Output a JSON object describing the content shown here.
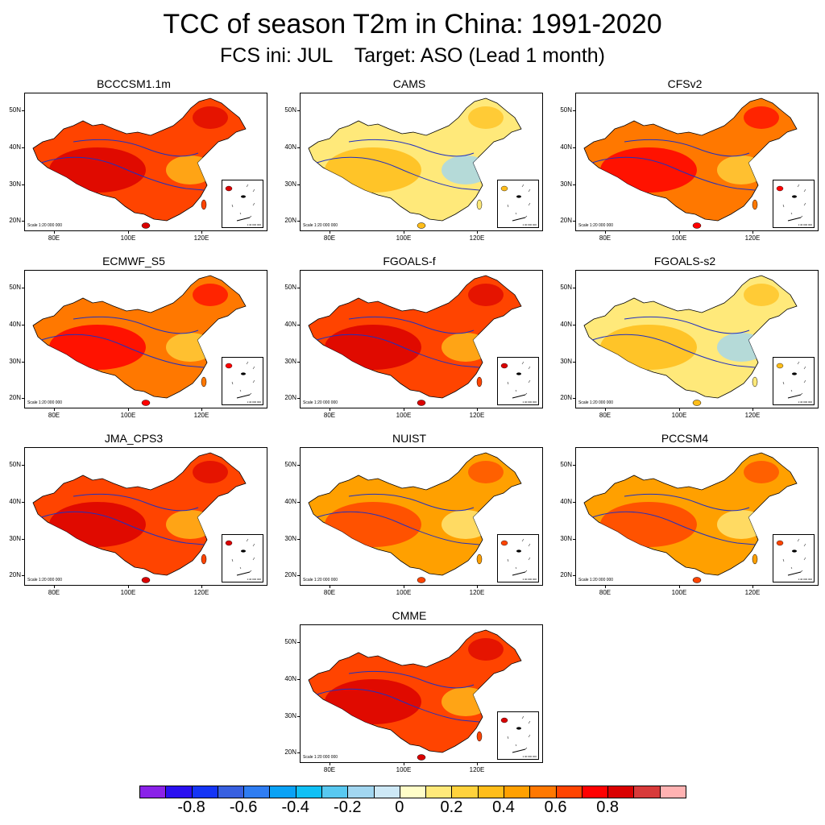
{
  "title": "TCC of season T2m in China: 1991-2020",
  "subtitle": "FCS ini: JUL    Target: ASO (Lead 1 month)",
  "axes": {
    "y_labels": [
      "50N",
      "40N",
      "30N",
      "20N"
    ],
    "x_labels": [
      "80E",
      "100E",
      "120E"
    ]
  },
  "scale_label": "Scale 1:20 000 000",
  "inset_scale_label": "1:40 000 000",
  "panels": [
    {
      "name": "BCCCSM1.1m",
      "level": 0.55
    },
    {
      "name": "CAMS",
      "level": 0.1
    },
    {
      "name": "CFSv2",
      "level": 0.5
    },
    {
      "name": "ECMWF_S5",
      "level": 0.5
    },
    {
      "name": "FGOALS-f",
      "level": 0.55
    },
    {
      "name": "FGOALS-s2",
      "level": 0.1
    },
    {
      "name": "JMA_CPS3",
      "level": 0.55
    },
    {
      "name": "NUIST",
      "level": 0.45
    },
    {
      "name": "PCCSM4",
      "level": 0.45
    },
    {
      "name": "CMME",
      "level": 0.55
    }
  ],
  "colorbar": {
    "colors": [
      "#8A22E8",
      "#2A10F0",
      "#1535F5",
      "#3860E0",
      "#2F7DF2",
      "#0AA2F5",
      "#10C0F5",
      "#58C8F0",
      "#A2D6F0",
      "#CDE8F6",
      "#FFFDC8",
      "#FFE97A",
      "#FFD23C",
      "#FFBD1A",
      "#FFA000",
      "#FF7800",
      "#FF4400",
      "#FF0000",
      "#DA0000",
      "#D83A3A",
      "#FFB2B2"
    ],
    "labels": [
      "-0.8",
      "-0.6",
      "-0.4",
      "-0.2",
      "0",
      "0.2",
      "0.4",
      "0.6",
      "0.8"
    ]
  }
}
